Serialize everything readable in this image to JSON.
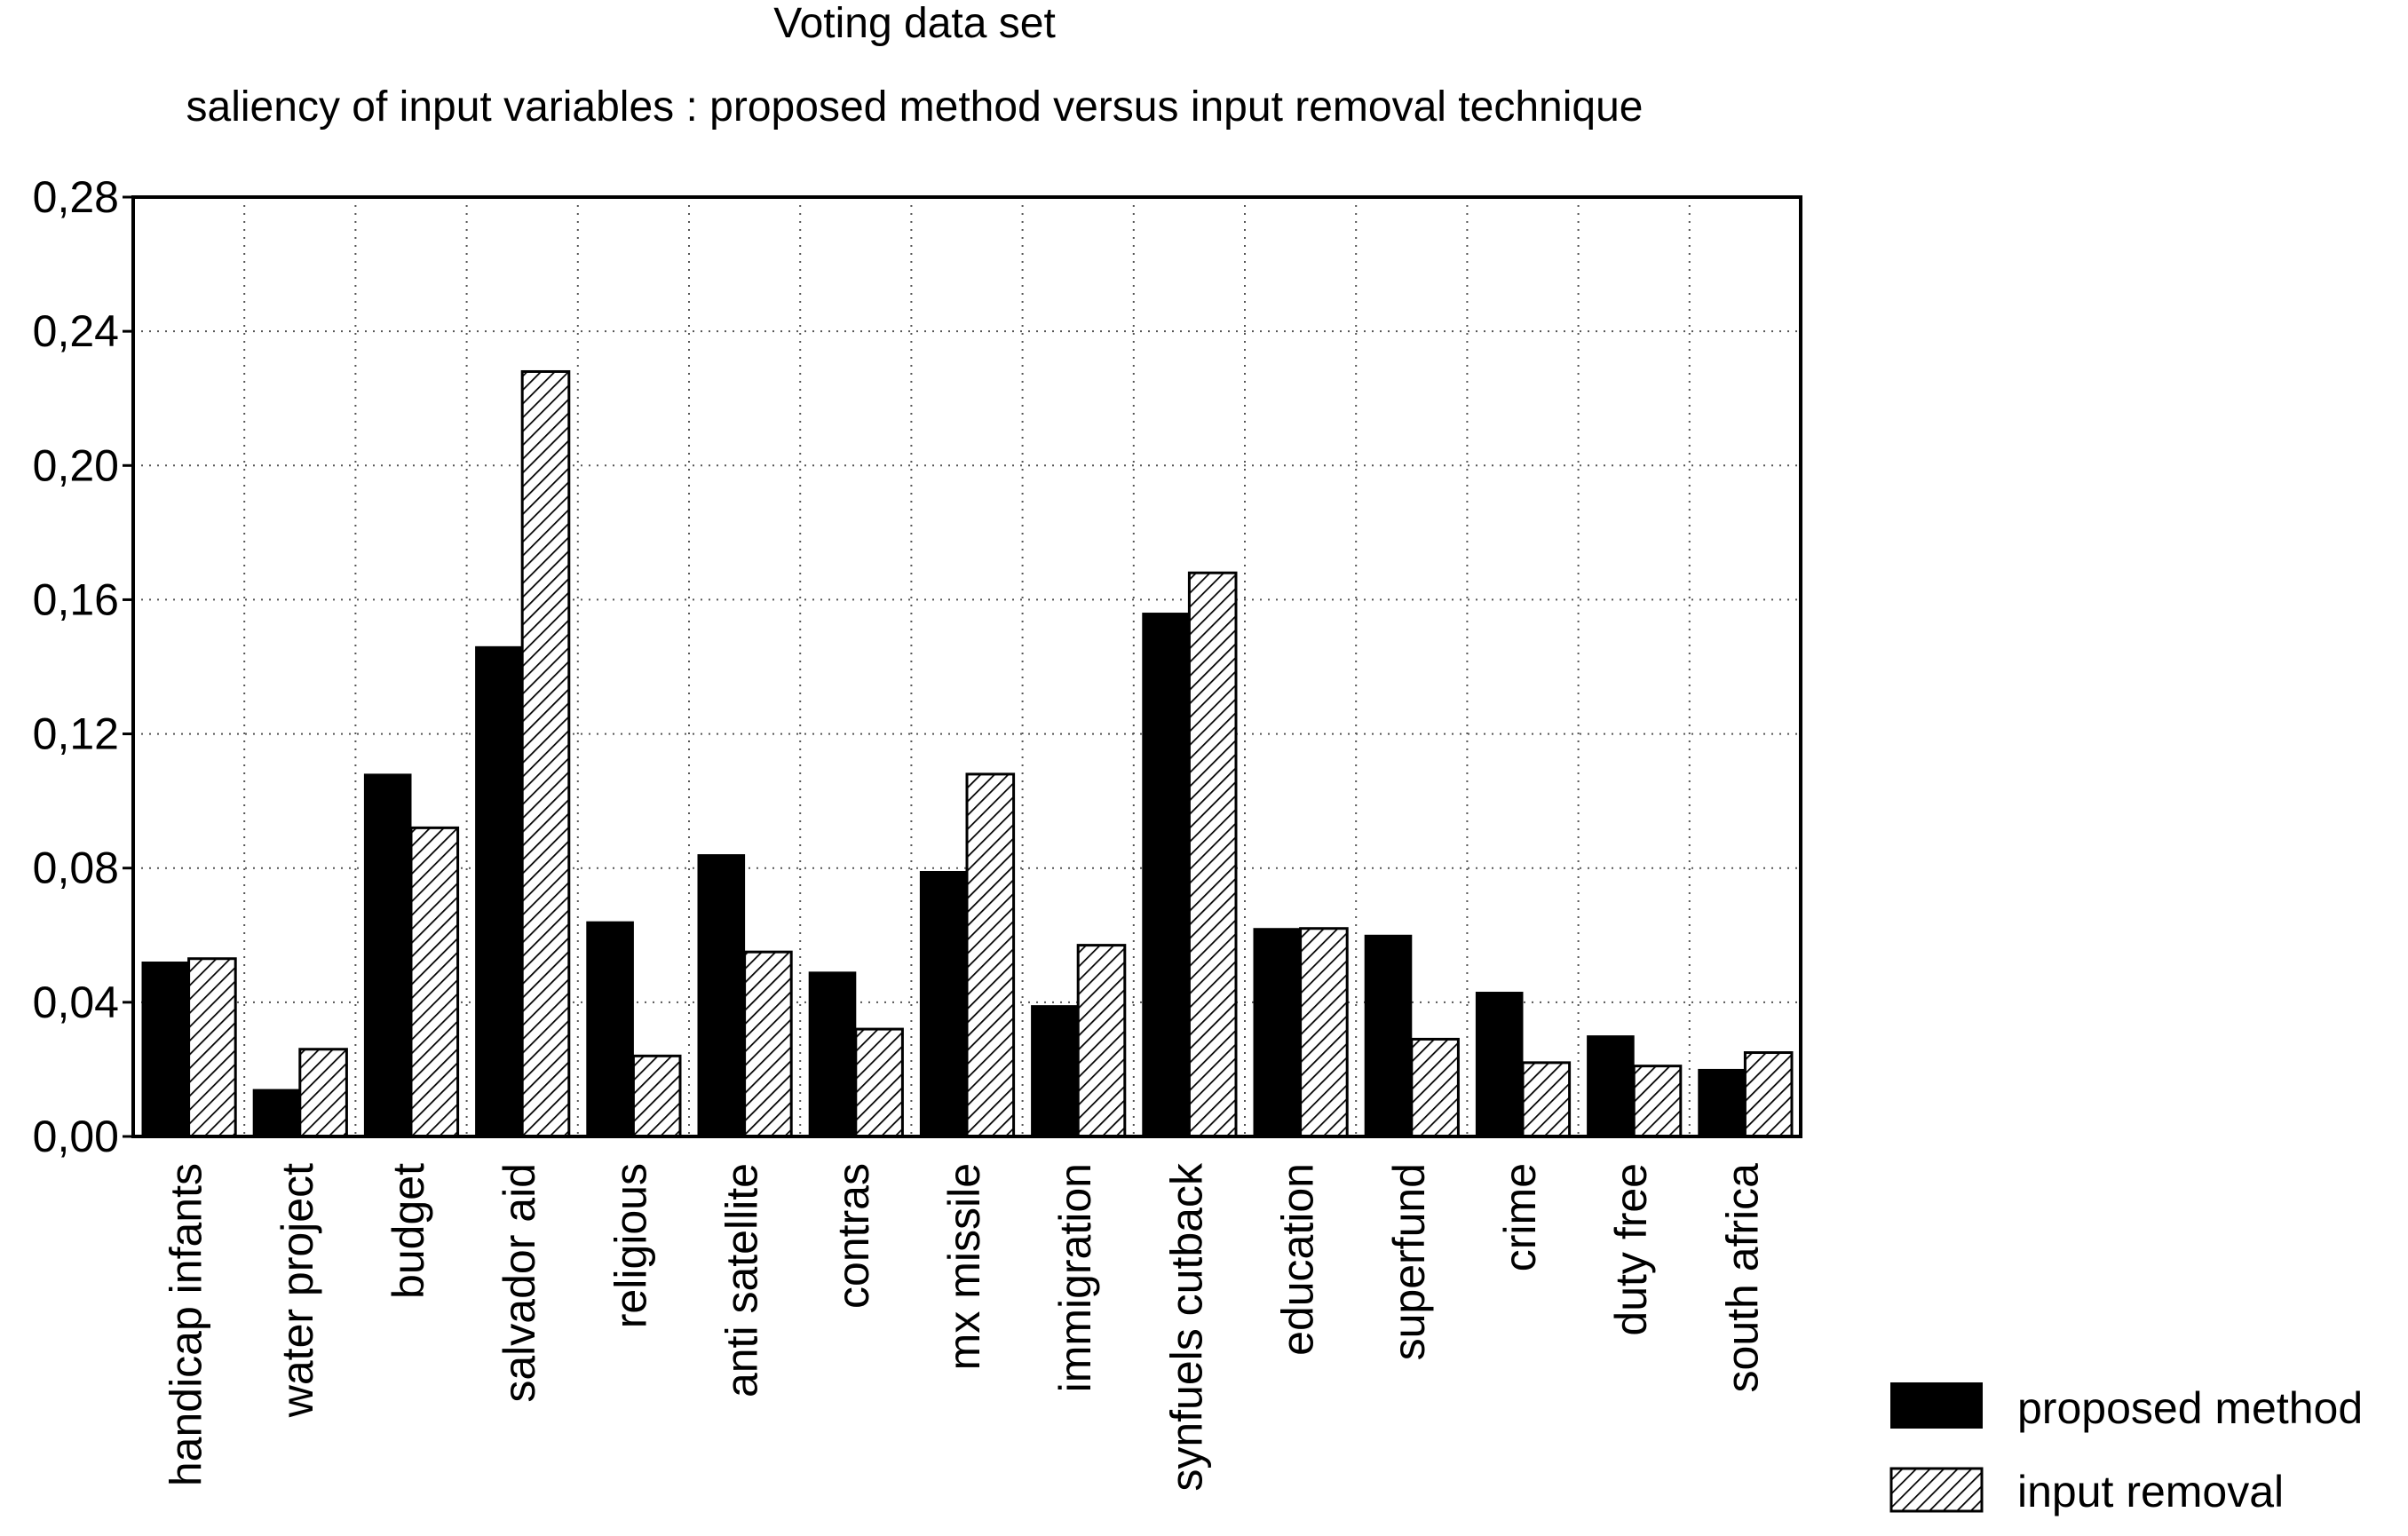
{
  "chart_data": {
    "type": "bar",
    "title": "Voting data set",
    "subtitle": "saliency of input variables : proposed method versus input removal technique",
    "xlabel": "",
    "ylabel": "",
    "ylim": [
      0,
      0.28
    ],
    "yticks": [
      "0,00",
      "0,04",
      "0,08",
      "0,12",
      "0,16",
      "0,20",
      "0,24",
      "0,28"
    ],
    "ytick_values": [
      0,
      0.04,
      0.08,
      0.12,
      0.16,
      0.2,
      0.24,
      0.28
    ],
    "grid": true,
    "legend_position": "bottom-right",
    "categories": [
      "handicap infants",
      "water project",
      "budget",
      "salvador aid",
      "religious",
      "anti satellite",
      "contras",
      "mx missile",
      "immigration",
      "synfuels cutback",
      "education",
      "superfund",
      "crime",
      "duty free",
      "south africa"
    ],
    "series": [
      {
        "name": "proposed method",
        "style": "solid",
        "color": "#000000",
        "values": [
          0.052,
          0.014,
          0.108,
          0.146,
          0.064,
          0.084,
          0.049,
          0.079,
          0.039,
          0.156,
          0.062,
          0.06,
          0.043,
          0.03,
          0.02
        ]
      },
      {
        "name": "input removal",
        "style": "hatched",
        "color": "#000000",
        "values": [
          0.053,
          0.026,
          0.092,
          0.228,
          0.024,
          0.055,
          0.032,
          0.108,
          0.057,
          0.168,
          0.062,
          0.029,
          0.022,
          0.021,
          0.025
        ]
      }
    ]
  }
}
